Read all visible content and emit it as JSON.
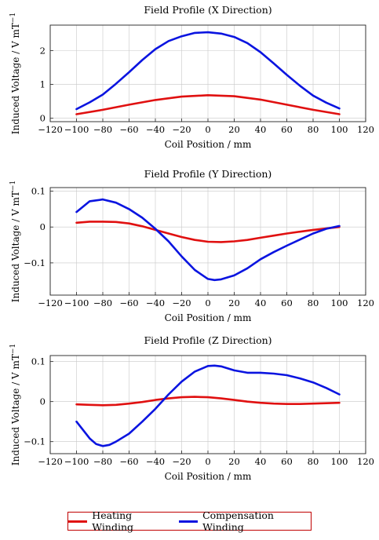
{
  "chart_data": [
    {
      "type": "line",
      "title": "Field Profile (X Direction)",
      "xlabel": "Coil Position / mm",
      "ylabel": "Induced Voltage / V mT",
      "ylabel_sup": "−1",
      "xlim": [
        -120,
        120
      ],
      "ylim": [
        -0.1,
        2.75
      ],
      "xticks": [
        -120,
        -100,
        -80,
        -60,
        -40,
        -20,
        0,
        20,
        40,
        60,
        80,
        100,
        120
      ],
      "xtick_labels": [
        "−120",
        "−100",
        "−80",
        "−60",
        "−40",
        "−20",
        "0",
        "20",
        "40",
        "60",
        "80",
        "100",
        "120"
      ],
      "yticks": [
        0,
        1,
        2
      ],
      "ytick_labels": [
        "0",
        "1",
        "2"
      ],
      "grid": true,
      "series": [
        {
          "name": "Heating Winding",
          "color": "#e01010",
          "x": [
            -100,
            -80,
            -60,
            -40,
            -20,
            0,
            20,
            40,
            60,
            80,
            100
          ],
          "y": [
            0.12,
            0.25,
            0.4,
            0.54,
            0.64,
            0.68,
            0.65,
            0.55,
            0.4,
            0.25,
            0.12
          ]
        },
        {
          "name": "Compensation Winding",
          "color": "#0a14e0",
          "x": [
            -100,
            -90,
            -80,
            -70,
            -60,
            -50,
            -40,
            -30,
            -20,
            -10,
            0,
            10,
            20,
            30,
            40,
            50,
            60,
            70,
            80,
            90,
            100
          ],
          "y": [
            0.27,
            0.47,
            0.7,
            1.02,
            1.36,
            1.72,
            2.04,
            2.28,
            2.42,
            2.52,
            2.54,
            2.5,
            2.4,
            2.22,
            1.95,
            1.62,
            1.28,
            0.96,
            0.67,
            0.46,
            0.29
          ]
        }
      ]
    },
    {
      "type": "line",
      "title": "Field Profile (Y Direction)",
      "xlabel": "Coil Position / mm",
      "ylabel": "Induced Voltage / V mT",
      "ylabel_sup": "−1",
      "xlim": [
        -120,
        120
      ],
      "ylim": [
        -0.19,
        0.11
      ],
      "xticks": [
        -120,
        -100,
        -80,
        -60,
        -40,
        -20,
        0,
        20,
        40,
        60,
        80,
        100,
        120
      ],
      "xtick_labels": [
        "−120",
        "−100",
        "−80",
        "−60",
        "−40",
        "−20",
        "0",
        "20",
        "40",
        "60",
        "80",
        "100",
        "120"
      ],
      "yticks": [
        -0.1,
        0,
        0.1
      ],
      "ytick_labels": [
        "−0.1",
        "0",
        "0.1"
      ],
      "grid": true,
      "series": [
        {
          "name": "Heating Winding",
          "color": "#e01010",
          "x": [
            -100,
            -90,
            -80,
            -70,
            -60,
            -50,
            -40,
            -30,
            -20,
            -10,
            0,
            10,
            20,
            30,
            40,
            50,
            60,
            70,
            80,
            90,
            100
          ],
          "y": [
            0.012,
            0.015,
            0.015,
            0.014,
            0.01,
            0.002,
            -0.008,
            -0.018,
            -0.028,
            -0.036,
            -0.041,
            -0.042,
            -0.04,
            -0.036,
            -0.03,
            -0.024,
            -0.018,
            -0.013,
            -0.008,
            -0.004,
            0.0
          ]
        },
        {
          "name": "Compensation Winding",
          "color": "#0a14e0",
          "x": [
            -100,
            -90,
            -80,
            -70,
            -60,
            -50,
            -40,
            -30,
            -20,
            -10,
            0,
            5,
            10,
            20,
            30,
            40,
            50,
            60,
            70,
            80,
            90,
            100
          ],
          "y": [
            0.042,
            0.072,
            0.077,
            0.068,
            0.05,
            0.026,
            -0.005,
            -0.04,
            -0.082,
            -0.12,
            -0.145,
            -0.148,
            -0.146,
            -0.135,
            -0.115,
            -0.09,
            -0.07,
            -0.052,
            -0.035,
            -0.018,
            -0.005,
            0.003
          ]
        }
      ]
    },
    {
      "type": "line",
      "title": "Field Profile (Z Direction)",
      "xlabel": "Coil Position / mm",
      "ylabel": "Induced Voltage / V mT",
      "ylabel_sup": "−1",
      "xlim": [
        -120,
        120
      ],
      "ylim": [
        -0.13,
        0.115
      ],
      "xticks": [
        -120,
        -100,
        -80,
        -60,
        -40,
        -20,
        0,
        20,
        40,
        60,
        80,
        100,
        120
      ],
      "xtick_labels": [
        "−120",
        "−100",
        "−80",
        "−60",
        "−40",
        "−20",
        "0",
        "20",
        "40",
        "60",
        "80",
        "100",
        "120"
      ],
      "yticks": [
        -0.1,
        0,
        0.1
      ],
      "ytick_labels": [
        "−0.1",
        "0",
        "0.1"
      ],
      "grid": true,
      "series": [
        {
          "name": "Heating Winding",
          "color": "#e01010",
          "x": [
            -100,
            -90,
            -80,
            -70,
            -60,
            -50,
            -40,
            -30,
            -20,
            -10,
            0,
            10,
            20,
            30,
            40,
            50,
            60,
            70,
            80,
            90,
            100
          ],
          "y": [
            -0.007,
            -0.008,
            -0.009,
            -0.008,
            -0.005,
            -0.001,
            0.004,
            0.008,
            0.011,
            0.012,
            0.011,
            0.008,
            0.004,
            0.0,
            -0.003,
            -0.005,
            -0.006,
            -0.006,
            -0.005,
            -0.004,
            -0.003
          ]
        },
        {
          "name": "Compensation Winding",
          "color": "#0a14e0",
          "x": [
            -100,
            -90,
            -85,
            -80,
            -75,
            -70,
            -60,
            -50,
            -40,
            -30,
            -20,
            -10,
            0,
            5,
            10,
            20,
            30,
            40,
            50,
            60,
            70,
            80,
            90,
            100
          ],
          "y": [
            -0.05,
            -0.092,
            -0.106,
            -0.111,
            -0.108,
            -0.1,
            -0.08,
            -0.05,
            -0.018,
            0.018,
            0.05,
            0.075,
            0.089,
            0.09,
            0.088,
            0.078,
            0.072,
            0.072,
            0.07,
            0.066,
            0.058,
            0.048,
            0.034,
            0.018
          ]
        }
      ]
    }
  ],
  "legend": [
    {
      "label": "Heating Winding",
      "color": "#e01010"
    },
    {
      "label": "Compensation Winding",
      "color": "#0a14e0"
    }
  ]
}
